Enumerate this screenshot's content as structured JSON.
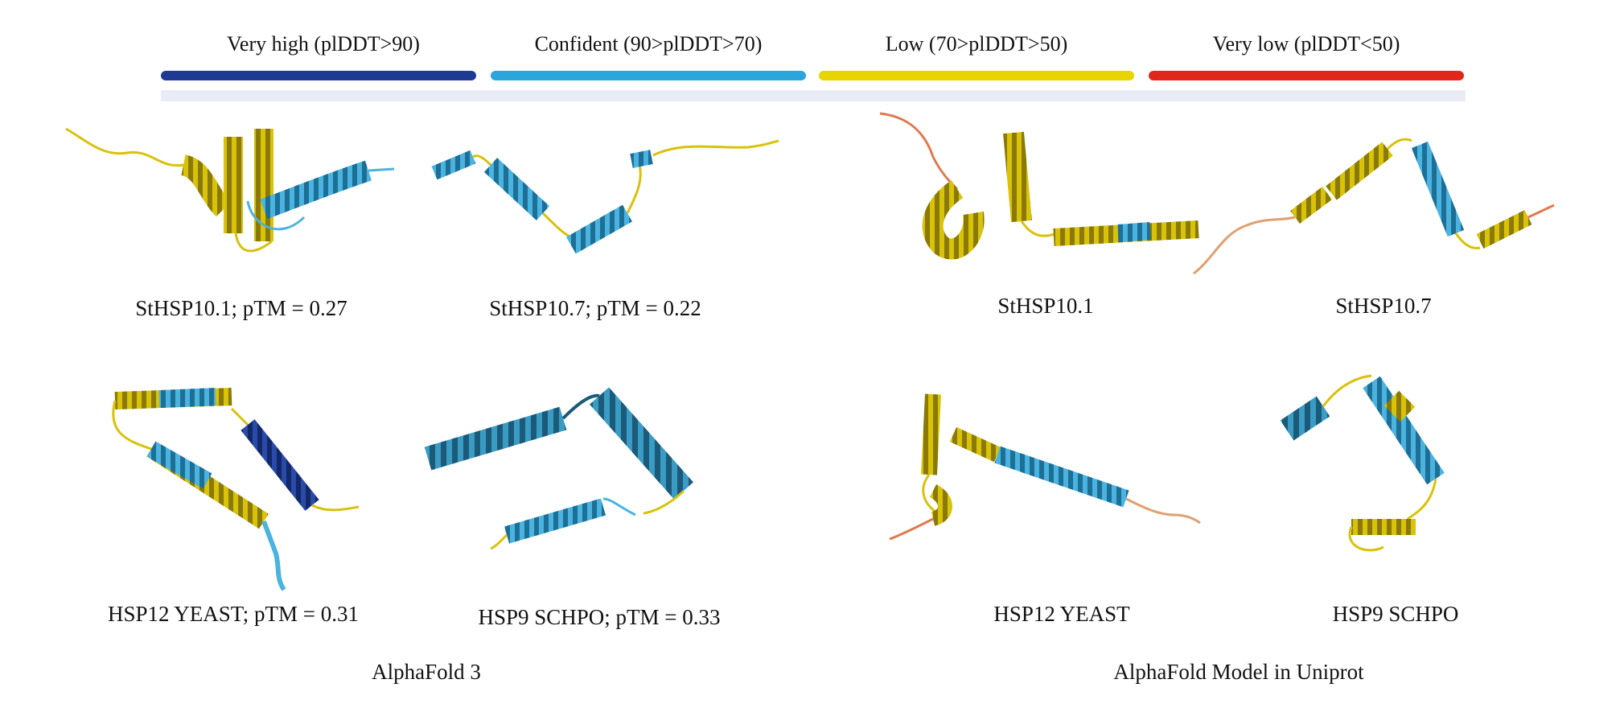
{
  "legend": {
    "items": [
      {
        "label": "Very high (plDDT>90)",
        "color": "#1f3a93"
      },
      {
        "label": "Confident (90>plDDT>70)",
        "color": "#2aa6dc"
      },
      {
        "label": "Low (70>plDDT>50)",
        "color": "#e8d400"
      },
      {
        "label": "Very low (plDDT<50)",
        "color": "#e1261c"
      }
    ]
  },
  "alphafold3": {
    "section_label": "AlphaFold 3",
    "structures": [
      {
        "caption": "StHSP10.1; pTM = 0.27"
      },
      {
        "caption": "StHSP10.7; pTM = 0.22"
      },
      {
        "caption": "HSP12 YEAST; pTM = 0.31"
      },
      {
        "caption": "HSP9 SCHPO; pTM = 0.33"
      }
    ]
  },
  "uniprot": {
    "section_label": "AlphaFold Model in Uniprot",
    "structures": [
      {
        "caption": "StHSP10.1"
      },
      {
        "caption": "StHSP10.7"
      },
      {
        "caption": "HSP12 YEAST"
      },
      {
        "caption": "HSP9 SCHPO"
      }
    ]
  }
}
